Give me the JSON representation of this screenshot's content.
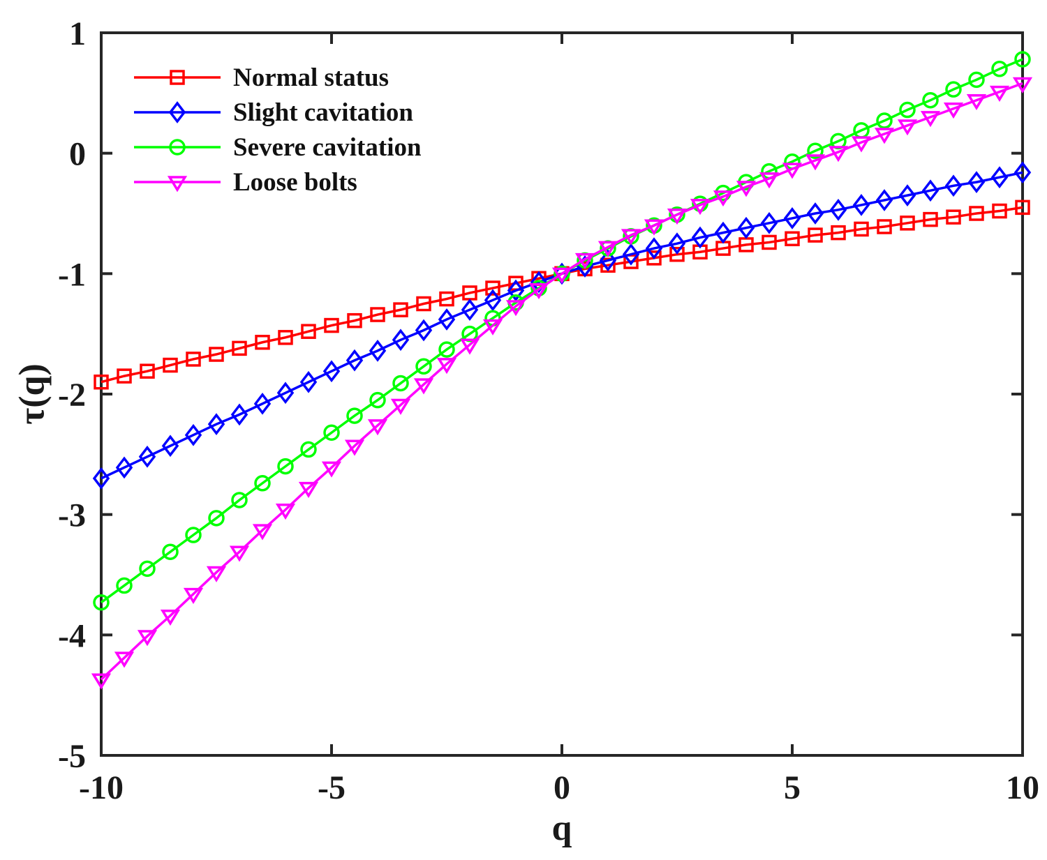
{
  "figure": {
    "background": "#ffffff",
    "axis_color": "#262626",
    "text_color": "#1a1a1a"
  },
  "chart_data": {
    "type": "line",
    "title": "",
    "xlabel": "q",
    "ylabel": "τ(q)",
    "xlim": [
      -10,
      10
    ],
    "ylim": [
      -5,
      1
    ],
    "xtick_labels": [
      "-10",
      "-5",
      "0",
      "5",
      "10"
    ],
    "ytick_labels": [
      "-5",
      "-4",
      "-3",
      "-2",
      "-1",
      "0",
      "1"
    ],
    "grid": false,
    "legend_position": "top-left",
    "x": [
      -10,
      -9.5,
      -9,
      -8.5,
      -8,
      -7.5,
      -7,
      -6.5,
      -6,
      -5.5,
      -5,
      -4.5,
      -4,
      -3.5,
      -3,
      -2.5,
      -2,
      -1.5,
      -1,
      -0.5,
      0,
      0.5,
      1,
      1.5,
      2,
      2.5,
      3,
      3.5,
      4,
      4.5,
      5,
      5.5,
      6,
      6.5,
      7,
      7.5,
      8,
      8.5,
      9,
      9.5,
      10
    ],
    "series": [
      {
        "name": "Normal status",
        "color": "#ff0000",
        "marker": "square",
        "values": [
          -1.9,
          -1.85,
          -1.81,
          -1.76,
          -1.71,
          -1.67,
          -1.62,
          -1.57,
          -1.53,
          -1.48,
          -1.43,
          -1.39,
          -1.34,
          -1.3,
          -1.25,
          -1.21,
          -1.16,
          -1.12,
          -1.08,
          -1.04,
          -1.0,
          -0.96,
          -0.93,
          -0.9,
          -0.87,
          -0.84,
          -0.82,
          -0.79,
          -0.76,
          -0.74,
          -0.71,
          -0.68,
          -0.66,
          -0.63,
          -0.61,
          -0.58,
          -0.55,
          -0.53,
          -0.5,
          -0.48,
          -0.45
        ]
      },
      {
        "name": "Slight cavitation",
        "color": "#0000ff",
        "marker": "diamond",
        "values": [
          -2.7,
          -2.61,
          -2.52,
          -2.43,
          -2.34,
          -2.25,
          -2.17,
          -2.08,
          -1.99,
          -1.9,
          -1.81,
          -1.72,
          -1.64,
          -1.55,
          -1.47,
          -1.38,
          -1.3,
          -1.22,
          -1.14,
          -1.07,
          -1.0,
          -0.94,
          -0.89,
          -0.84,
          -0.79,
          -0.75,
          -0.7,
          -0.66,
          -0.62,
          -0.58,
          -0.54,
          -0.5,
          -0.47,
          -0.43,
          -0.39,
          -0.35,
          -0.31,
          -0.27,
          -0.24,
          -0.2,
          -0.16
        ]
      },
      {
        "name": "Severe cavitation",
        "color": "#00ff00",
        "marker": "circle",
        "values": [
          -3.73,
          -3.59,
          -3.45,
          -3.31,
          -3.17,
          -3.03,
          -2.88,
          -2.74,
          -2.6,
          -2.46,
          -2.32,
          -2.18,
          -2.05,
          -1.91,
          -1.77,
          -1.63,
          -1.5,
          -1.37,
          -1.24,
          -1.12,
          -1.0,
          -0.89,
          -0.79,
          -0.69,
          -0.6,
          -0.51,
          -0.42,
          -0.33,
          -0.24,
          -0.15,
          -0.07,
          0.02,
          0.1,
          0.19,
          0.27,
          0.36,
          0.44,
          0.53,
          0.61,
          0.7,
          0.78
        ]
      },
      {
        "name": "Loose bolts",
        "color": "#ff00ff",
        "marker": "triangle-down",
        "values": [
          -4.37,
          -4.19,
          -4.01,
          -3.84,
          -3.66,
          -3.48,
          -3.31,
          -3.13,
          -2.96,
          -2.78,
          -2.61,
          -2.43,
          -2.26,
          -2.09,
          -1.92,
          -1.75,
          -1.59,
          -1.43,
          -1.27,
          -1.13,
          -1.0,
          -0.88,
          -0.78,
          -0.68,
          -0.6,
          -0.51,
          -0.43,
          -0.36,
          -0.28,
          -0.21,
          -0.13,
          -0.06,
          0.01,
          0.09,
          0.16,
          0.23,
          0.3,
          0.37,
          0.44,
          0.51,
          0.58
        ]
      }
    ]
  }
}
